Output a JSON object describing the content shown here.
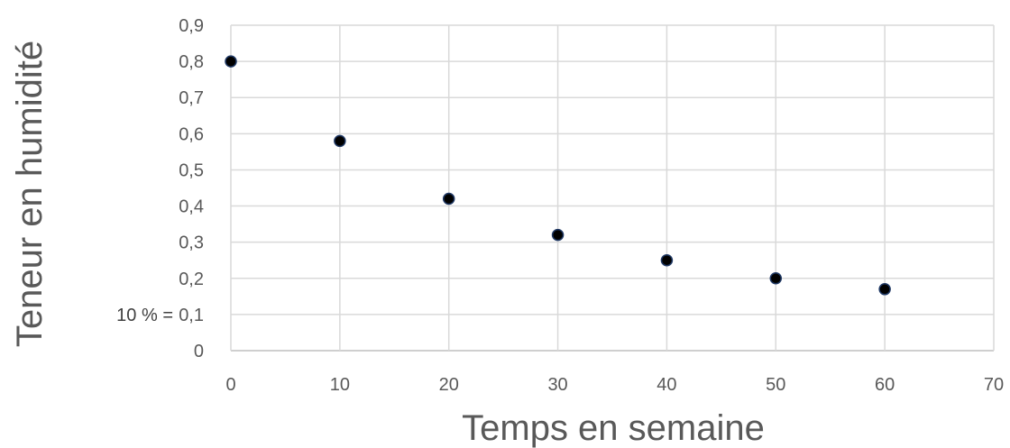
{
  "chart_data": {
    "type": "scatter",
    "xlabel": "Temps en semaine",
    "ylabel": "Teneur en humidité",
    "xlim": [
      0,
      70
    ],
    "ylim": [
      0,
      0.9
    ],
    "x_ticks": [
      "0",
      "10",
      "20",
      "30",
      "40",
      "50",
      "60",
      "70"
    ],
    "y_ticks": [
      "0",
      "0,1",
      "0,2",
      "0,3",
      "0,4",
      "0,5",
      "0,6",
      "0,7",
      "0,8",
      "0,9"
    ],
    "grid": true,
    "annotation": "10 % =",
    "marker_color": "#000000",
    "marker_edge_color": "#1f3864",
    "grid_color": "#d9d9d9",
    "points": [
      {
        "x": 0,
        "y": 0.8
      },
      {
        "x": 10,
        "y": 0.58
      },
      {
        "x": 20,
        "y": 0.42
      },
      {
        "x": 30,
        "y": 0.32
      },
      {
        "x": 40,
        "y": 0.25
      },
      {
        "x": 50,
        "y": 0.2
      },
      {
        "x": 60,
        "y": 0.17
      }
    ]
  }
}
